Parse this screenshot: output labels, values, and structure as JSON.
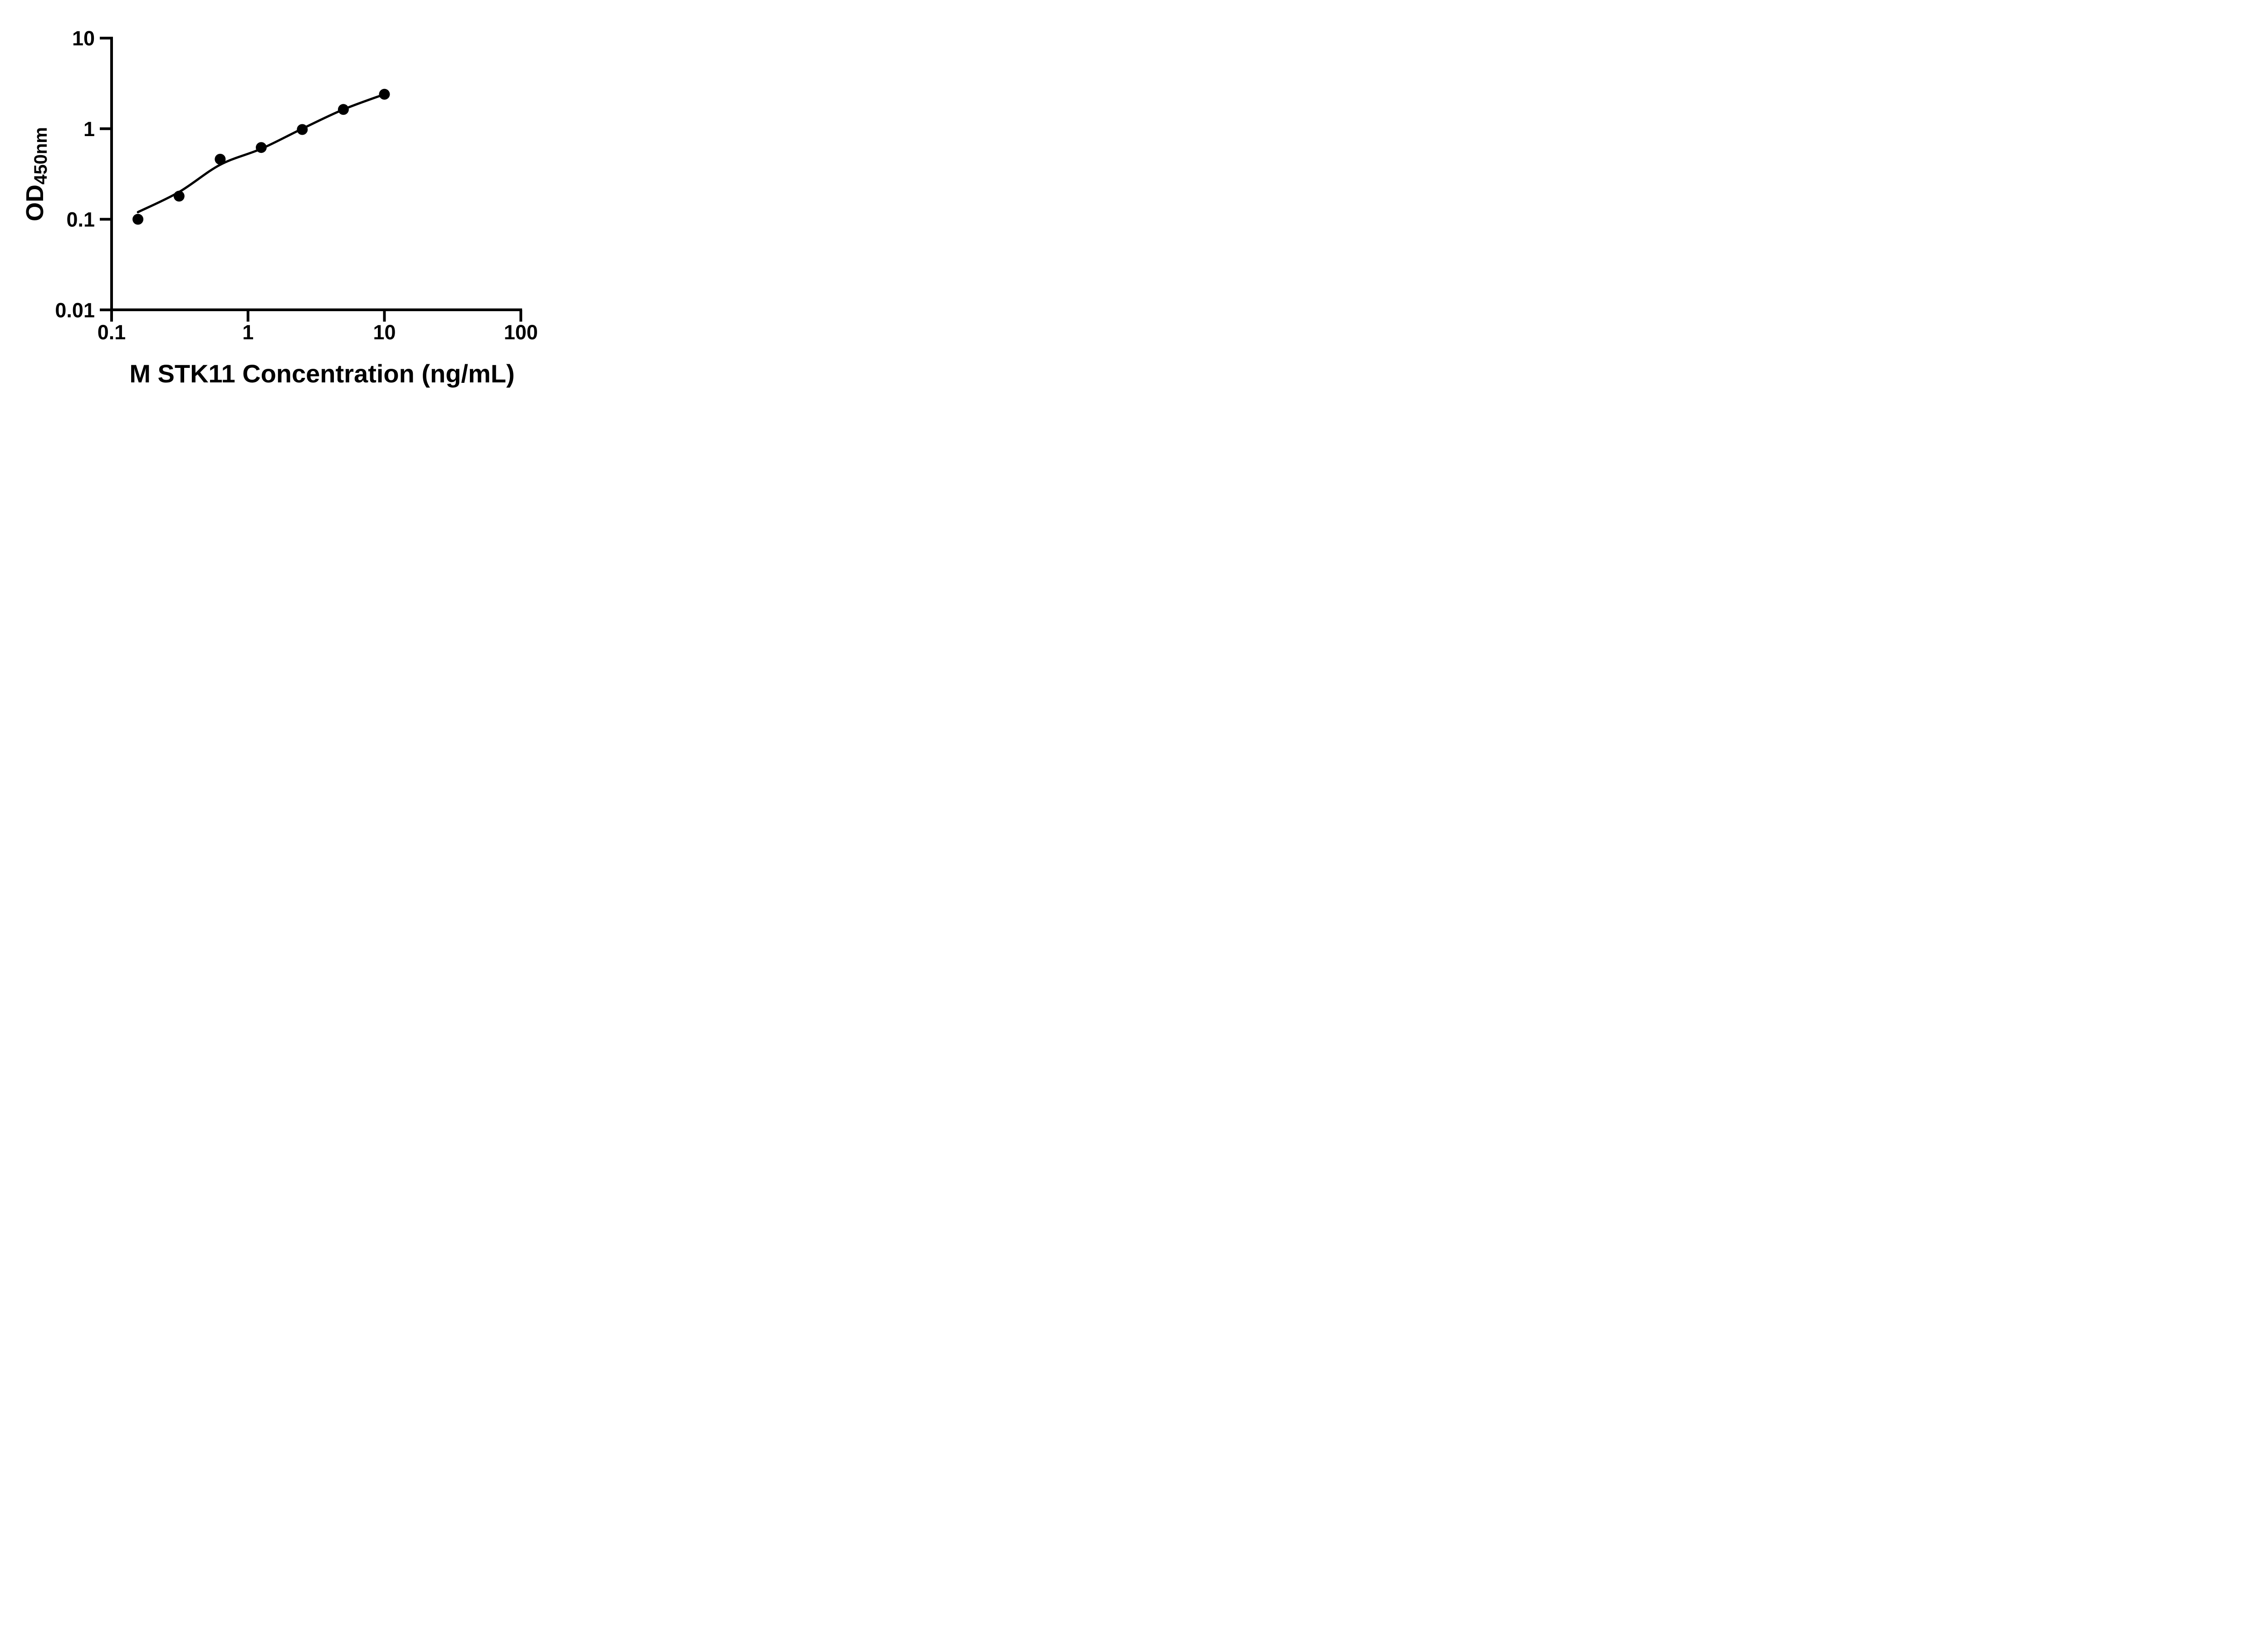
{
  "page": {
    "background": "#ffffff",
    "ink_color": "#000000"
  },
  "chart_data": {
    "type": "scatter",
    "title": "",
    "xlabel": "M STK11 Concentration (ng/mL)",
    "ylabel": "OD450nm",
    "ylabel_parts": {
      "main": "OD",
      "subscript": "450nm"
    },
    "x_scale": "log10",
    "y_scale": "log10",
    "xlim": [
      0.1,
      100
    ],
    "ylim": [
      0.01,
      10
    ],
    "grid": false,
    "legend": "none",
    "x_ticks": [
      {
        "value": 0.1,
        "label": "0.1"
      },
      {
        "value": 1,
        "label": "1"
      },
      {
        "value": 10,
        "label": "10"
      },
      {
        "value": 100,
        "label": "100"
      }
    ],
    "y_ticks": [
      {
        "value": 10,
        "label": "10"
      },
      {
        "value": 1,
        "label": "1"
      },
      {
        "value": 0.1,
        "label": "0.1"
      },
      {
        "value": 0.01,
        "label": "0.01"
      }
    ],
    "series": [
      {
        "name": "standard-points",
        "kind": "points",
        "marker": "filled-circle",
        "color": "#000000",
        "points": [
          {
            "x": 0.156,
            "od": 0.1
          },
          {
            "x": 0.3125,
            "od": 0.18
          },
          {
            "x": 0.625,
            "od": 0.46
          },
          {
            "x": 1.25,
            "od": 0.62
          },
          {
            "x": 2.5,
            "od": 0.98
          },
          {
            "x": 5,
            "od": 1.63
          },
          {
            "x": 10,
            "od": 2.4
          }
        ]
      },
      {
        "name": "fitted-curve",
        "kind": "smooth-line",
        "color": "#000000",
        "points": [
          {
            "x": 0.156,
            "od": 0.12
          },
          {
            "x": 0.3125,
            "od": 0.2
          },
          {
            "x": 0.625,
            "od": 0.4
          },
          {
            "x": 1.25,
            "od": 0.6
          },
          {
            "x": 2.5,
            "od": 1.0
          },
          {
            "x": 5,
            "od": 1.63
          },
          {
            "x": 10,
            "od": 2.4
          }
        ]
      }
    ]
  }
}
